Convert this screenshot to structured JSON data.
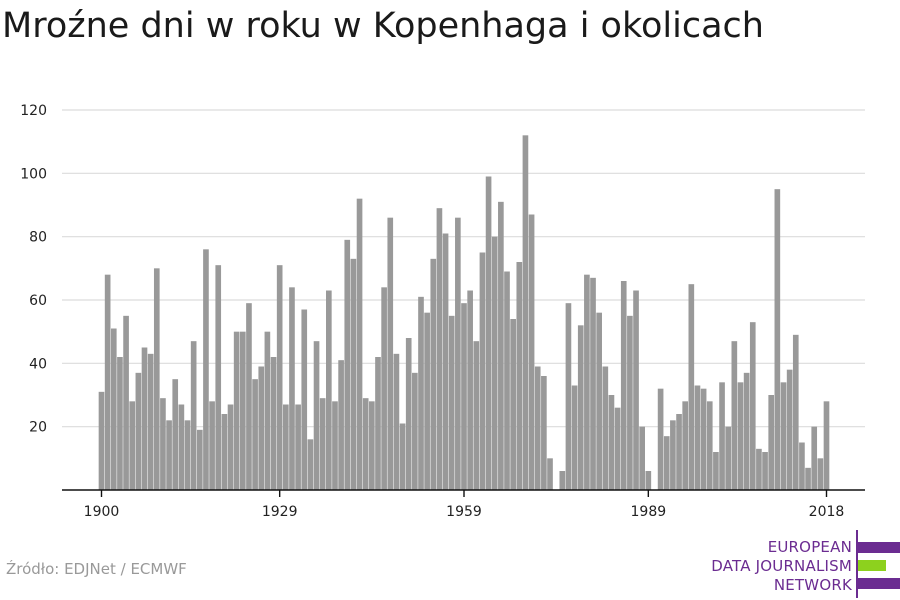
{
  "title": "Mroźne dni w roku w Kopenhaga i okolicach",
  "source": "Źródło: EDJNet / ECMWF",
  "logo": {
    "lines": [
      "EUROPEAN",
      "DATA JOURNALISM",
      "NETWORK"
    ],
    "colors": {
      "purple": "#6b2c91",
      "green": "#8dd11e"
    }
  },
  "chart_data": {
    "type": "bar",
    "title": "Mroźne dni w roku w Kopenhaga i okolicach",
    "xlabel": "",
    "ylabel": "",
    "x_start": 1900,
    "x_end": 2018,
    "x_ticks": [
      1900,
      1929,
      1959,
      1989,
      2018
    ],
    "y_ticks": [
      20,
      40,
      60,
      80,
      100,
      120
    ],
    "ylim": [
      0,
      120
    ],
    "grid": true,
    "bar_color": "#999999",
    "values": [
      31,
      68,
      51,
      42,
      55,
      28,
      37,
      45,
      43,
      70,
      29,
      22,
      35,
      27,
      22,
      47,
      19,
      76,
      28,
      71,
      24,
      27,
      50,
      50,
      59,
      35,
      39,
      50,
      42,
      71,
      27,
      64,
      27,
      57,
      16,
      47,
      29,
      63,
      28,
      41,
      79,
      73,
      92,
      29,
      28,
      42,
      64,
      86,
      43,
      21,
      48,
      37,
      61,
      56,
      73,
      89,
      81,
      55,
      86,
      59,
      63,
      47,
      75,
      99,
      80,
      91,
      69,
      54,
      72,
      112,
      87,
      39,
      36,
      10,
      0,
      6,
      59,
      33,
      52,
      68,
      67,
      56,
      39,
      30,
      26,
      66,
      55,
      63,
      20,
      6,
      0,
      32,
      17,
      22,
      24,
      28,
      65,
      33,
      32,
      28,
      12,
      34,
      20,
      47,
      34,
      37,
      53,
      13,
      12,
      30,
      95,
      34,
      38,
      49,
      15,
      7,
      20,
      10,
      28
    ]
  }
}
